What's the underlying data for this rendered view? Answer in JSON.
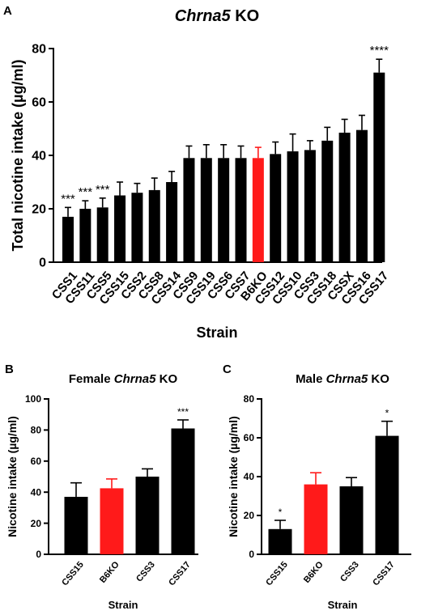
{
  "panels": {
    "A": {
      "letter": "A"
    },
    "B": {
      "letter": "B"
    },
    "C": {
      "letter": "C"
    }
  },
  "colors": {
    "default_bar": "#000000",
    "highlight_bar": "#ff1a1a"
  },
  "chart_data": [
    {
      "panel": "A",
      "type": "bar",
      "title_italic": "Chrna5",
      "title_rest": " KO",
      "xlabel": "Strain",
      "ylabel": "Total nicotine intake (µg/ml)",
      "ylim": [
        0,
        80
      ],
      "yticks": [
        "0",
        "20",
        "40",
        "60",
        "80"
      ],
      "grid": false,
      "categories": [
        "CSS1",
        "CSS11",
        "CSS5",
        "CSS15",
        "CSS2",
        "CSS8",
        "CSS14",
        "CSS9",
        "CSS19",
        "CSS6",
        "CSS7",
        "B6KO",
        "CSS12",
        "CSS10",
        "CSS3",
        "CSS18",
        "CSSX",
        "CSS16",
        "CSS17"
      ],
      "values": [
        17,
        20,
        20.5,
        25,
        26,
        27,
        30,
        39,
        39,
        39,
        39,
        39,
        40.5,
        41.5,
        42,
        45.5,
        48.5,
        49.5,
        71
      ],
      "errors": [
        3.5,
        3,
        3.5,
        5,
        3.5,
        4.5,
        4,
        4.5,
        5,
        5,
        4.5,
        4,
        4.5,
        6.5,
        3.5,
        5,
        5,
        5.5,
        5
      ],
      "highlight": [
        "B6KO"
      ],
      "annotations": [
        {
          "category": "CSS1",
          "text": "***"
        },
        {
          "category": "CSS11",
          "text": "***"
        },
        {
          "category": "CSS5",
          "text": "***"
        },
        {
          "category": "CSS17",
          "text": "****"
        }
      ]
    },
    {
      "panel": "B",
      "type": "bar",
      "title_prefix": "Female ",
      "title_italic": "Chrna5",
      "title_rest": " KO",
      "xlabel": "Strain",
      "ylabel": "Nicotine intake (µg/ml)",
      "ylim": [
        0,
        100
      ],
      "yticks": [
        "0",
        "20",
        "40",
        "60",
        "80",
        "100"
      ],
      "grid": false,
      "categories": [
        "CSS15",
        "B6KO",
        "CSS3",
        "CSS17"
      ],
      "values": [
        37,
        42.5,
        50,
        81
      ],
      "errors": [
        9,
        6,
        5,
        5.5
      ],
      "highlight": [
        "B6KO"
      ],
      "annotations": [
        {
          "category": "CSS17",
          "text": "***"
        }
      ]
    },
    {
      "panel": "C",
      "type": "bar",
      "title_prefix": "Male ",
      "title_italic": "Chrna5",
      "title_rest": " KO",
      "xlabel": "Strain",
      "ylabel": "Nicotine intake (µg/ml)",
      "ylim": [
        0,
        80
      ],
      "yticks": [
        "0",
        "20",
        "40",
        "60",
        "80"
      ],
      "grid": false,
      "categories": [
        "CSS15",
        "B6KO",
        "CSS3",
        "CSS17"
      ],
      "values": [
        13,
        36,
        35,
        61
      ],
      "errors": [
        4.5,
        6,
        4.5,
        7.5
      ],
      "highlight": [
        "B6KO"
      ],
      "annotations": [
        {
          "category": "CSS15",
          "text": "*"
        },
        {
          "category": "CSS17",
          "text": "*"
        }
      ]
    }
  ]
}
